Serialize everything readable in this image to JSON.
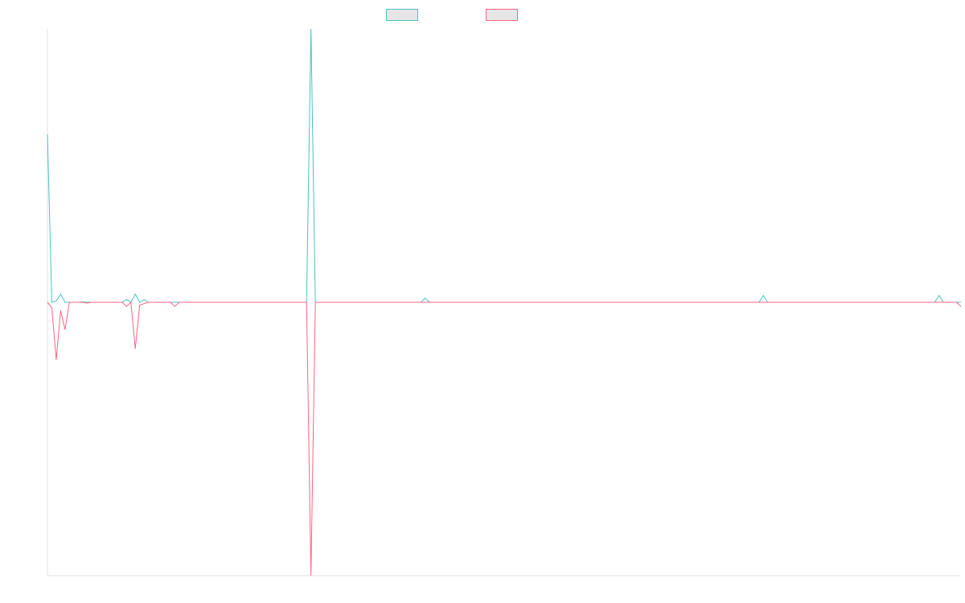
{
  "colors": {
    "series_a": "#4bc0c0",
    "series_b": "#ff6384",
    "axis": "#e0e0e0",
    "legend_fill": "#e6e6e6"
  },
  "chart_data": {
    "type": "line",
    "title": "",
    "xlabel": "",
    "ylabel": "",
    "grid": false,
    "legend_position": "top-center",
    "ylim": [
      -100,
      100
    ],
    "x": [
      0,
      1,
      2,
      3,
      4,
      5,
      6,
      7,
      8,
      9,
      10,
      11,
      12,
      13,
      14,
      15,
      16,
      17,
      18,
      19,
      20,
      21,
      22,
      23,
      24,
      25,
      26,
      27,
      28,
      29,
      30,
      31,
      32,
      33,
      34,
      35,
      36,
      37,
      38,
      39,
      40,
      41,
      42,
      43,
      44,
      45,
      46,
      47,
      48,
      49,
      50,
      51,
      52,
      53,
      54,
      55,
      56,
      57,
      58,
      59,
      60,
      61,
      62,
      63,
      64,
      65,
      66,
      67,
      68,
      69,
      70,
      71,
      72,
      73,
      74,
      75,
      76,
      77,
      78,
      79,
      80,
      81,
      82,
      83,
      84,
      85,
      86,
      87,
      88,
      89,
      90,
      91,
      92,
      93,
      94,
      95,
      96,
      97,
      98,
      99,
      100,
      101,
      102,
      103,
      104,
      105,
      106,
      107,
      108,
      109,
      110,
      111,
      112,
      113,
      114,
      115,
      116,
      117,
      118,
      119,
      120,
      121,
      122,
      123,
      124,
      125,
      126,
      127,
      128,
      129,
      130,
      131,
      132,
      133,
      134,
      135,
      136,
      137,
      138,
      139,
      140,
      141,
      142,
      143,
      144,
      145,
      146,
      147,
      148,
      149,
      150,
      151,
      152,
      153,
      154,
      155,
      156,
      157,
      158,
      159,
      160,
      161,
      162,
      163,
      164,
      165,
      166,
      167,
      168,
      169,
      170,
      171,
      172,
      173,
      174,
      175,
      176,
      177,
      178,
      179,
      180,
      181,
      182,
      183,
      184,
      185,
      186,
      187,
      188,
      189,
      190,
      191,
      192,
      193,
      194,
      195,
      196,
      197,
      198,
      199,
      200,
      201,
      202,
      203,
      204,
      205,
      206,
      207,
      208
    ],
    "series": [
      {
        "color": "#4bc0c0",
        "values": [
          61.5,
          0,
          0.5,
          3,
          0,
          0,
          0,
          0,
          0.2,
          0,
          0,
          0,
          0,
          0,
          0,
          0,
          0,
          0,
          1,
          0,
          3,
          0,
          1,
          0,
          0,
          0,
          0,
          0,
          0,
          0,
          0,
          0,
          0,
          0,
          0,
          0,
          0,
          0,
          0,
          0,
          0,
          0,
          0,
          0,
          0,
          0,
          0,
          0,
          0,
          0,
          0,
          0,
          0,
          0,
          0,
          0,
          0,
          0,
          0,
          0,
          100,
          0,
          0,
          0,
          0,
          0,
          0,
          0,
          0,
          0,
          0,
          0,
          0,
          0,
          0,
          0,
          0,
          0,
          0,
          0,
          0,
          0,
          0,
          0,
          0,
          0,
          1.5,
          0,
          0,
          0,
          0,
          0,
          0,
          0,
          0,
          0,
          0,
          0,
          0,
          0,
          0,
          0,
          0,
          0,
          0,
          0,
          0,
          0,
          0,
          0,
          0,
          0,
          0,
          0,
          0,
          0,
          0,
          0,
          0,
          0,
          0,
          0,
          0,
          0,
          0,
          0,
          0,
          0,
          0,
          0,
          0,
          0,
          0,
          0,
          0,
          0,
          0,
          0,
          0,
          0,
          0,
          0,
          0,
          0,
          0,
          0,
          0,
          0,
          0,
          0,
          0,
          0,
          0,
          0,
          0,
          0,
          0,
          0,
          0,
          0,
          0,
          0,
          0,
          2.5,
          0,
          0,
          0,
          0,
          0,
          0,
          0,
          0,
          0,
          0,
          0,
          0,
          0,
          0,
          0,
          0,
          0,
          0,
          0,
          0,
          0,
          0,
          0,
          0,
          0,
          0,
          0,
          0,
          0,
          0,
          0,
          0,
          0,
          0,
          0,
          0,
          0,
          0,
          0,
          2.5,
          0,
          0,
          0,
          0,
          0
        ]
      },
      {
        "color": "#ff6384",
        "values": [
          0,
          -2,
          -21,
          -3,
          -10,
          0,
          0,
          0,
          0,
          -0.3,
          0,
          0,
          0,
          0,
          0,
          0,
          0,
          0,
          -1.5,
          0,
          -17,
          -1,
          -0.5,
          0,
          0,
          0,
          0,
          0,
          0,
          -1.5,
          0,
          0,
          0,
          0,
          0,
          0,
          0,
          0,
          0,
          0,
          0,
          0,
          0,
          0,
          0,
          0,
          0,
          0,
          0,
          0,
          0,
          0,
          0,
          0,
          0,
          0,
          0,
          0,
          0,
          0,
          -100,
          0,
          0,
          0,
          0,
          0,
          0,
          0,
          0,
          0,
          0,
          0,
          0,
          0,
          0,
          0,
          0,
          0,
          0,
          0,
          0,
          0,
          0,
          0,
          0,
          0,
          0,
          0,
          0,
          0,
          0,
          0,
          0,
          0,
          0,
          0,
          0,
          0,
          0,
          0,
          0,
          0,
          0,
          0,
          0,
          0,
          0,
          0,
          0,
          0,
          0,
          0,
          0,
          0,
          0,
          0,
          0,
          0,
          0,
          0,
          0,
          0,
          0,
          0,
          0,
          0,
          0,
          0,
          0,
          0,
          0,
          0,
          0,
          0,
          0,
          0,
          0,
          0,
          0,
          0,
          0,
          0,
          0,
          0,
          0,
          0,
          0,
          0,
          0,
          0,
          0,
          0,
          0,
          0,
          0,
          0,
          0,
          0,
          0,
          0,
          0,
          0,
          0,
          0,
          0,
          0,
          0,
          0,
          0,
          0,
          0,
          0,
          0,
          0,
          0,
          0,
          0,
          0,
          0,
          0,
          0,
          0,
          0,
          0,
          0,
          0,
          0,
          0,
          0,
          0,
          0,
          0,
          0,
          0,
          0,
          0,
          0,
          0,
          0,
          0,
          0,
          0,
          0,
          0,
          0,
          0,
          0,
          0,
          -1.5
        ]
      }
    ]
  }
}
